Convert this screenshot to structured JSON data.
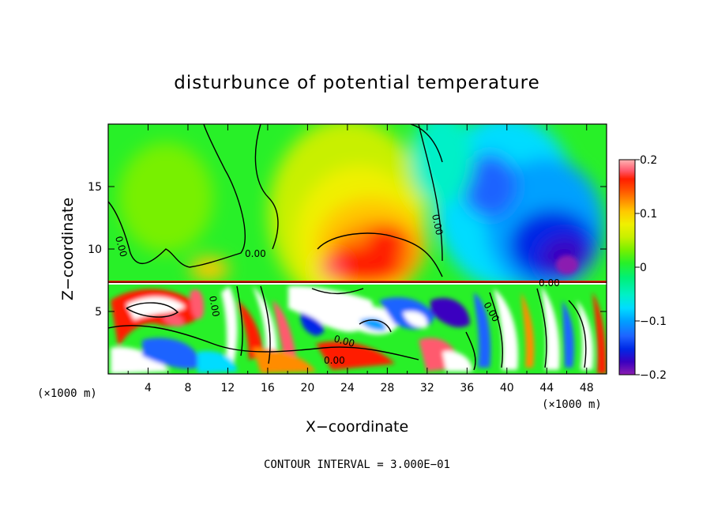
{
  "chart_data": {
    "type": "heatmap",
    "title": "disturbunce of potential temperature",
    "xlabel": "X−coordinate",
    "ylabel": "Z−coordinate",
    "x_unit_left": "(×1000 m)",
    "x_unit_right": "(×1000 m)",
    "xlim": [
      0,
      50
    ],
    "ylim": [
      0,
      20
    ],
    "x_ticks": [
      4,
      8,
      12,
      16,
      20,
      24,
      28,
      32,
      36,
      40,
      44,
      48
    ],
    "y_ticks": [
      5,
      10,
      15
    ],
    "colorbar": {
      "range": [
        -0.2,
        0.2
      ],
      "tick_values": [
        0.2,
        0.1,
        0,
        -0.1,
        -0.2
      ],
      "tick_labels": [
        "0.2",
        "0.1",
        "0",
        "−0.1",
        "−0.2"
      ],
      "colors": [
        "#8b1db0",
        "#3a00c0",
        "#0028e6",
        "#1e64ff",
        "#00a0ff",
        "#00dcff",
        "#00f0c8",
        "#00f078",
        "#28f028",
        "#78f000",
        "#c8f000",
        "#f0f000",
        "#ffc800",
        "#ff8c00",
        "#ff5000",
        "#ff1e00",
        "#ff5a6e",
        "#ffb4b4"
      ]
    },
    "contour_labels": [
      "0.00",
      "0.00",
      "0.00",
      "0.00",
      "0.00",
      "0.00",
      "0.00",
      "0.00"
    ],
    "contour_interval_text": "CONTOUR INTERVAL = 3.000E−01",
    "features": [
      {
        "x": 2,
        "z": 8,
        "value": 0.02
      },
      {
        "x": 5,
        "z": 13,
        "value": 0.03
      },
      {
        "x": 10,
        "z": 11,
        "value": 0.01
      },
      {
        "x": 14,
        "z": 12,
        "value": 0.03
      },
      {
        "x": 10,
        "z": 17,
        "value": 0.02
      },
      {
        "x": 24,
        "z": 10,
        "value": 0.17
      },
      {
        "x": 27,
        "z": 11,
        "value": 0.15
      },
      {
        "x": 25,
        "z": 15,
        "value": 0.08
      },
      {
        "x": 24,
        "z": 18,
        "value": 0.05
      },
      {
        "x": 37,
        "z": 18,
        "value": -0.07
      },
      {
        "x": 40,
        "z": 15,
        "value": -0.12
      },
      {
        "x": 45,
        "z": 10,
        "value": -0.17
      },
      {
        "x": 46,
        "z": 8,
        "value": -0.2
      },
      {
        "x": 47,
        "z": 16,
        "value": -0.06
      }
    ]
  }
}
